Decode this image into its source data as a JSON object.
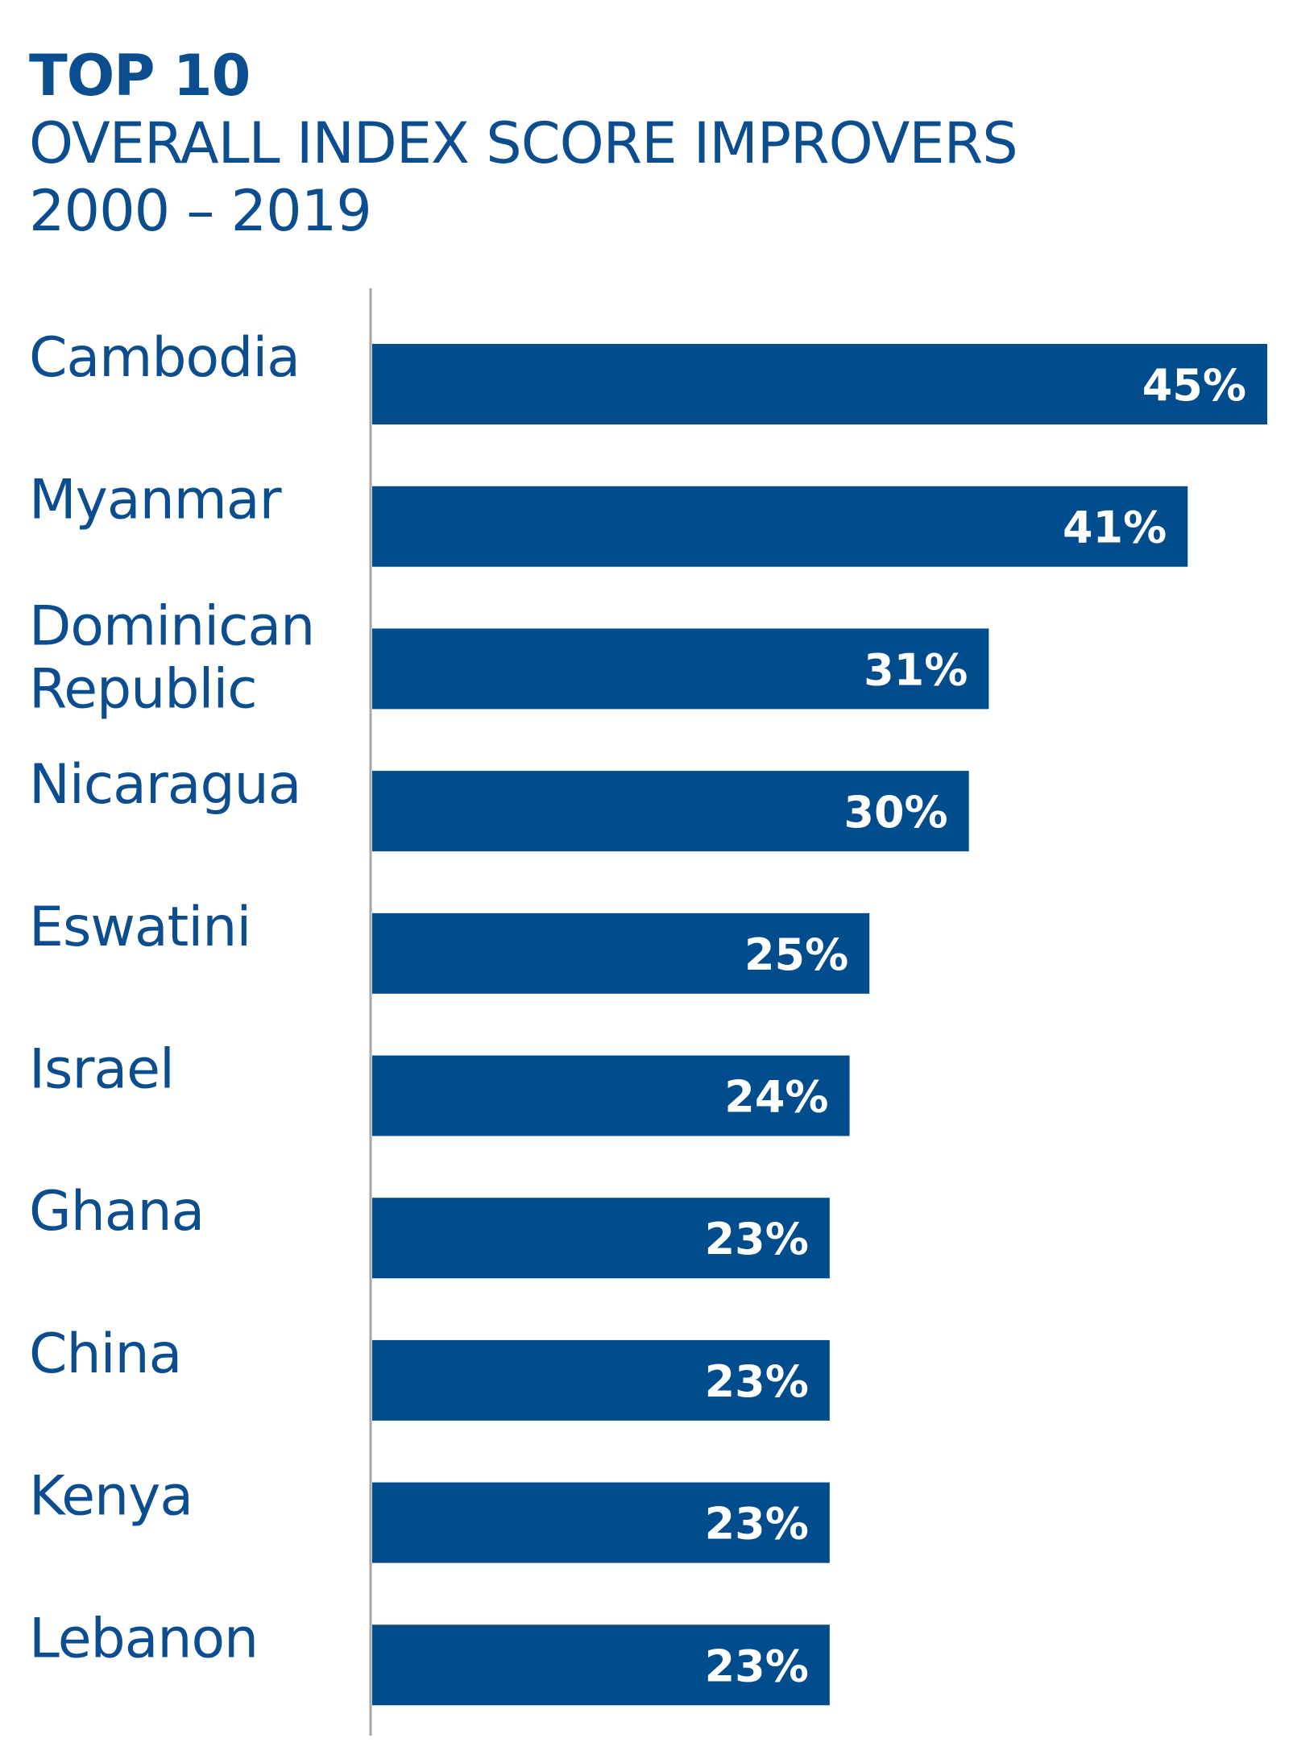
{
  "colors": {
    "bar": "#004c8c",
    "text": "#0b4d8f",
    "axis": "#a6a6a6",
    "bar_label": "#ffffff"
  },
  "chart_data": {
    "type": "bar",
    "orientation": "horizontal",
    "title": "TOP 10",
    "subtitle": "OVERALL INDEX SCORE IMPROVERS",
    "period": "2000 – 2019",
    "categories": [
      [
        "Cambodia"
      ],
      [
        "Myanmar"
      ],
      [
        "Dominican",
        "Republic"
      ],
      [
        "Nicaragua"
      ],
      [
        "Eswatini"
      ],
      [
        "Israel"
      ],
      [
        "Ghana"
      ],
      [
        "China"
      ],
      [
        "Kenya"
      ],
      [
        "Lebanon"
      ]
    ],
    "values": [
      45,
      41,
      31,
      30,
      25,
      24,
      23,
      23,
      23,
      23
    ],
    "labels": [
      "45%",
      "41%",
      "31%",
      "30%",
      "25%",
      "24%",
      "23%",
      "23%",
      "23%",
      "23%"
    ],
    "unit": "%",
    "xlim": [
      0,
      45
    ],
    "grid": false,
    "legend": "none"
  }
}
